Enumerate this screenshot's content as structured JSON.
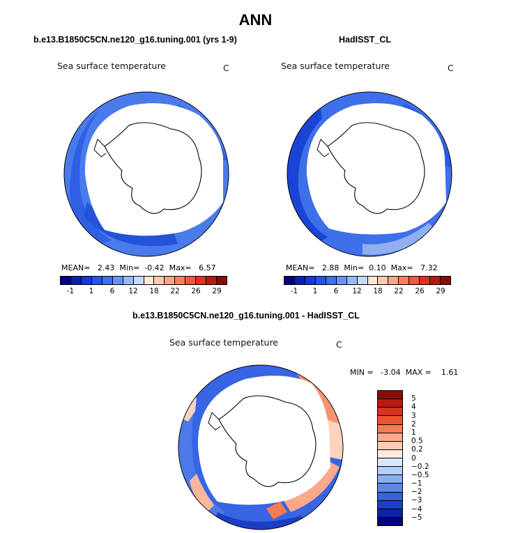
{
  "chart_data": [
    {
      "type": "heatmap",
      "panel": "model",
      "title": "b.e13.B1850C5CN.ne120_g16.tuning.001 (yrs 1-9)",
      "variable": "Sea surface temperature",
      "units": "C",
      "stats": {
        "mean": "2.43",
        "min": "-0.42",
        "max": "6.57"
      },
      "stats_labels": {
        "mean": "MEAN=",
        "min": "Min=",
        "max": "Max="
      },
      "colorbar": {
        "levels": [
          "-1",
          "1",
          "6",
          "12",
          "18",
          "22",
          "26",
          "29"
        ],
        "colors": [
          "#00007f",
          "#0a1fb0",
          "#1437d6",
          "#2754e6",
          "#3f6fec",
          "#6a93f1",
          "#97b9f6",
          "#c5dbfb",
          "#fde7d6",
          "#fccab0",
          "#f9a686",
          "#f5805e",
          "#ee5a3a",
          "#d9361f",
          "#b31b12",
          "#840c0c"
        ]
      },
      "projection": "south polar stereographic"
    },
    {
      "type": "heatmap",
      "panel": "observations",
      "title": "HadISST_CL",
      "variable": "Sea surface temperature",
      "units": "C",
      "stats": {
        "mean": "2.88",
        "min": "0.10",
        "max": "7.32"
      },
      "stats_labels": {
        "mean": "MEAN=",
        "min": "Min=",
        "max": "Max="
      },
      "colorbar": {
        "levels": [
          "-1",
          "1",
          "6",
          "12",
          "18",
          "22",
          "26",
          "29"
        ],
        "colors": [
          "#00007f",
          "#0a1fb0",
          "#1437d6",
          "#2754e6",
          "#3f6fec",
          "#6a93f1",
          "#97b9f6",
          "#c5dbfb",
          "#fde7d6",
          "#fccab0",
          "#f9a686",
          "#f5805e",
          "#ee5a3a",
          "#d9361f",
          "#b31b12",
          "#840c0c"
        ]
      },
      "projection": "south polar stereographic"
    },
    {
      "type": "heatmap",
      "panel": "difference",
      "title": "b.e13.B1850C5CN.ne120_g16.tuning.001 - HadISST_CL",
      "variable": "Sea surface temperature",
      "units": "C",
      "stats": {
        "min": "-3.04",
        "max": "1.61"
      },
      "stats_text": "MIN =   -3.04  MAX =    1.61",
      "colorbar": {
        "levels": [
          "5",
          "4",
          "3",
          "2",
          "1",
          "0.5",
          "0.2",
          "0",
          "−0.2",
          "−0.5",
          "−1",
          "−2",
          "−3",
          "−4",
          "−5"
        ],
        "colors": [
          "#8b0a0a",
          "#b51a14",
          "#d6321c",
          "#ee5330",
          "#f77c55",
          "#fba98a",
          "#fdcbb3",
          "#feebde",
          "#d9e9fb",
          "#b5d0f6",
          "#8daef0",
          "#5d88ea",
          "#3461e0",
          "#1a3ec8",
          "#0c24a6",
          "#00007f"
        ]
      },
      "projection": "south polar stereographic"
    }
  ],
  "main_title": "ANN"
}
